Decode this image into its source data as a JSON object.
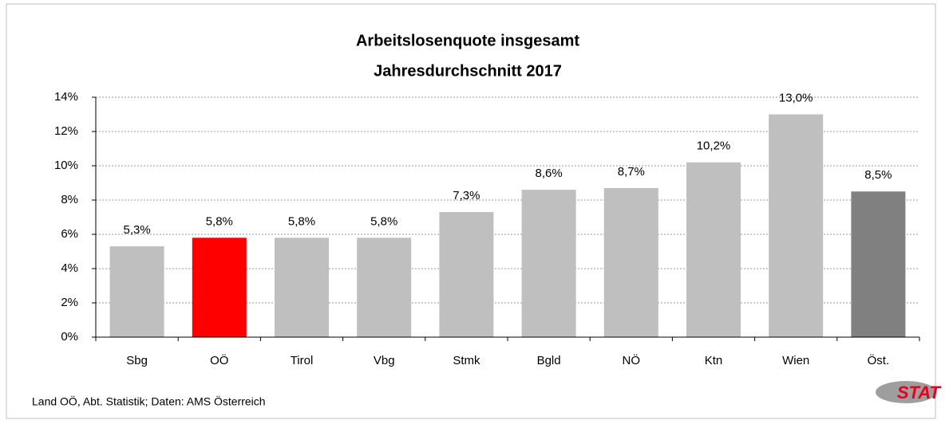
{
  "chart_data": {
    "type": "bar",
    "title": "Arbeitslosenquote insgesamt",
    "subtitle": "Jahresdurchschnitt 2017",
    "categories": [
      "Sbg",
      "OÖ",
      "Tirol",
      "Vbg",
      "Stmk",
      "Bgld",
      "NÖ",
      "Ktn",
      "Wien",
      "Öst."
    ],
    "values": [
      5.3,
      5.8,
      5.8,
      5.8,
      7.3,
      8.6,
      8.7,
      10.2,
      13.0,
      8.5
    ],
    "value_labels": [
      "5,3%",
      "5,8%",
      "5,8%",
      "5,8%",
      "7,3%",
      "8,6%",
      "8,7%",
      "10,2%",
      "13,0%",
      "8,5%"
    ],
    "colors": [
      "#bfbfbf",
      "#ff0000",
      "#bfbfbf",
      "#bfbfbf",
      "#bfbfbf",
      "#bfbfbf",
      "#bfbfbf",
      "#bfbfbf",
      "#bfbfbf",
      "#808080"
    ],
    "ylim": [
      0,
      14
    ],
    "yticks": [
      {
        "value": 0,
        "label": "0%"
      },
      {
        "value": 2,
        "label": "2%"
      },
      {
        "value": 4,
        "label": "4%"
      },
      {
        "value": 6,
        "label": "6%"
      },
      {
        "value": 8,
        "label": "8%"
      },
      {
        "value": 10,
        "label": "10%"
      },
      {
        "value": 12,
        "label": "12%"
      },
      {
        "value": 14,
        "label": "14%"
      }
    ],
    "grid": true,
    "source": "Land OÖ, Abt. Statistik; Daten: AMS Österreich",
    "logo": "STAT"
  }
}
